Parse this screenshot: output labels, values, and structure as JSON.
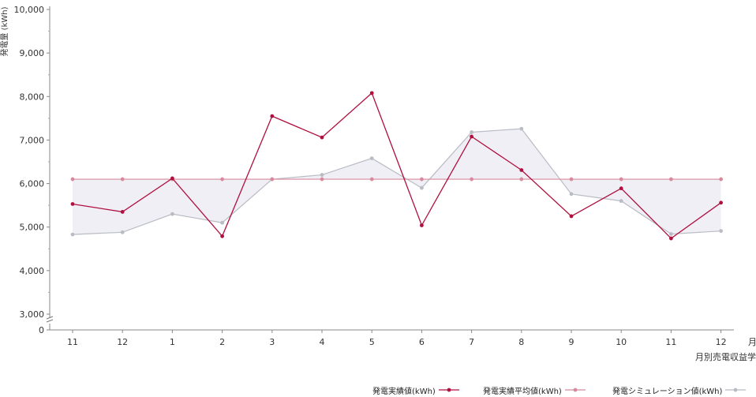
{
  "chart_data": {
    "type": "line",
    "categories": [
      "11",
      "12",
      "1",
      "2",
      "3",
      "4",
      "5",
      "6",
      "7",
      "8",
      "9",
      "10",
      "11",
      "12"
    ],
    "x_unit": "月",
    "xlabel": "月別売電収益学",
    "ylabel": "発電量 (kWh)",
    "y_ticks": [
      "10,000",
      "9,000",
      "8,000",
      "7,000",
      "6,000",
      "5,000",
      "4,000",
      "3,000",
      "0"
    ],
    "ylim": [
      3000,
      10000
    ],
    "axis_break": true,
    "grid": false,
    "legend_position": "bottom-right",
    "series": [
      {
        "name": "発電実績値(kWh)",
        "color": "#b0103e",
        "values": [
          5530,
          5350,
          6120,
          4790,
          7550,
          7060,
          8080,
          5040,
          7080,
          6310,
          5250,
          5890,
          4740,
          5560
        ]
      },
      {
        "name": "発電実績平均値(kWh)",
        "color": "#d88a9c",
        "values": [
          6100,
          6100,
          6100,
          6100,
          6100,
          6100,
          6100,
          6100,
          6100,
          6100,
          6100,
          6100,
          6100,
          6100
        ]
      },
      {
        "name": "発電シミュレーション値(kWh)",
        "color": "#b9bcc4",
        "values": [
          4830,
          4880,
          5300,
          5100,
          6100,
          6200,
          6580,
          5900,
          7180,
          7260,
          5760,
          5600,
          4840,
          4910
        ]
      }
    ]
  }
}
